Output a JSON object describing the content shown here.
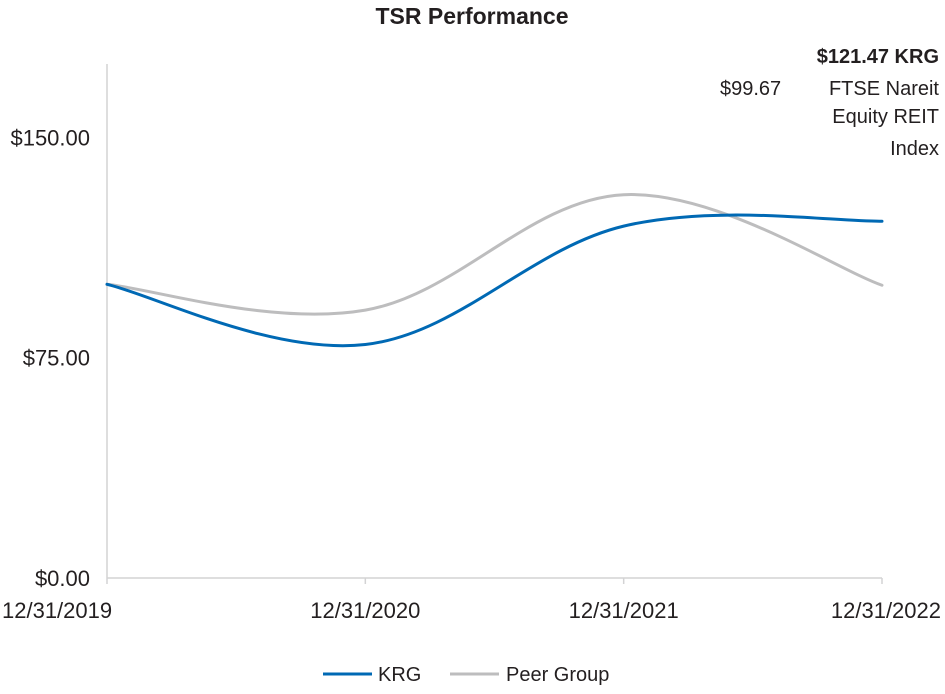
{
  "chart_data": {
    "type": "line",
    "title": "TSR Performance",
    "categories": [
      "12/31/2019",
      "12/31/2020",
      "12/31/2021",
      "12/31/2022"
    ],
    "xlabel": "",
    "ylabel": "",
    "ylim": [
      0,
      175
    ],
    "yticks": [
      {
        "value": 0,
        "label": "$0.00"
      },
      {
        "value": 75,
        "label": "$75.00"
      },
      {
        "value": 150,
        "label": "$150.00"
      }
    ],
    "grid": false,
    "series": [
      {
        "name": "KRG",
        "color": "#0069b4",
        "values": [
          100,
          79.5,
          119.8,
          121.47
        ]
      },
      {
        "name": "Peer Group",
        "color": "#bdbdbe",
        "values": [
          100,
          91.2,
          130.5,
          99.67
        ]
      }
    ],
    "annotations": {
      "krg_value": "$121.47 KRG",
      "peer_value": "$99.67",
      "peer_name_line1": "FTSE Nareit",
      "peer_name_line2": "Equity REIT",
      "peer_name_line3": "Index"
    },
    "legend": {
      "placement": "bottom-center",
      "items": [
        {
          "label": "KRG",
          "color": "#0069b4"
        },
        {
          "label": "Peer Group",
          "color": "#bdbdbe"
        }
      ]
    },
    "axis_color": "#d3d3d4"
  }
}
